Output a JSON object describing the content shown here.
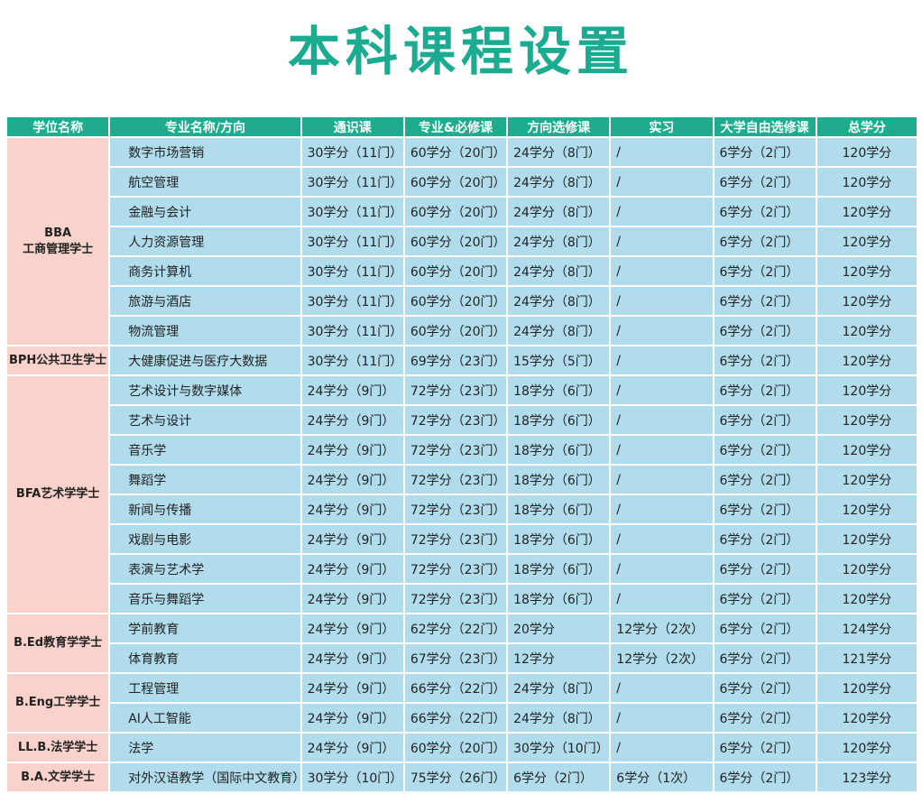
{
  "title": "本科课程设置",
  "headers": [
    "学位名称",
    "专业名称/方向",
    "通识课",
    "专业&必修课",
    "方向选修课",
    "实习",
    "大学自由选修课",
    "总学分"
  ],
  "groups": [
    {
      "degree": [
        "BBA",
        "工商管理学士"
      ],
      "rows": [
        [
          "数字市场营销",
          "30学分（11门）",
          "60学分（20门）",
          "24学分（8门）",
          "/",
          "6学分（2门）",
          "120学分"
        ],
        [
          "航空管理",
          "30学分（11门）",
          "60学分（20门）",
          "24学分（8门）",
          "/",
          "6学分（2门）",
          "120学分"
        ],
        [
          "金融与会计",
          "30学分（11门）",
          "60学分（20门）",
          "24学分（8门）",
          "/",
          "6学分（2门）",
          "120学分"
        ],
        [
          "人力资源管理",
          "30学分（11门）",
          "60学分（20门）",
          "24学分（8门）",
          "/",
          "6学分（2门）",
          "120学分"
        ],
        [
          "商务计算机",
          "30学分（11门）",
          "60学分（20门）",
          "24学分（8门）",
          "/",
          "6学分（2门）",
          "120学分"
        ],
        [
          "旅游与酒店",
          "30学分（11门）",
          "60学分（20门）",
          "24学分（8门）",
          "/",
          "6学分（2门）",
          "120学分"
        ],
        [
          "物流管理",
          "30学分（11门）",
          "60学分（20门）",
          "24学分（8门）",
          "/",
          "6学分（2门）",
          "120学分"
        ]
      ]
    },
    {
      "degree": [
        "BPH公共卫生学士"
      ],
      "rows": [
        [
          "大健康促进与医疗大数据",
          "30学分（11门）",
          "69学分（23门）",
          "15学分（5门）",
          "/",
          "6学分（2门）",
          "120学分"
        ]
      ]
    },
    {
      "degree": [
        "BFA艺术学学士"
      ],
      "rows": [
        [
          "艺术设计与数字媒体",
          "24学分（9门）",
          "72学分（23门）",
          "18学分（6门）",
          "/",
          "6学分（2门）",
          "120学分"
        ],
        [
          "艺术与设计",
          "24学分（9门）",
          "72学分（23门）",
          "18学分（6门）",
          "/",
          "6学分（2门）",
          "120学分"
        ],
        [
          "音乐学",
          "24学分（9门）",
          "72学分（23门）",
          "18学分（6门）",
          "/",
          "6学分（2门）",
          "120学分"
        ],
        [
          "舞蹈学",
          "24学分（9门）",
          "72学分（23门）",
          "18学分（6门）",
          "/",
          "6学分（2门）",
          "120学分"
        ],
        [
          "新闻与传播",
          "24学分（9门）",
          "72学分（23门）",
          "18学分（6门）",
          "/",
          "6学分（2门）",
          "120学分"
        ],
        [
          "戏剧与电影",
          "24学分（9门）",
          "72学分（23门）",
          "18学分（6门）",
          "/",
          "6学分（2门）",
          "120学分"
        ],
        [
          "表演与艺术学",
          "24学分（9门）",
          "72学分（23门）",
          "18学分（6门）",
          "/",
          "6学分（2门）",
          "120学分"
        ],
        [
          "音乐与舞蹈学",
          "24学分（9门）",
          "72学分（23门）",
          "18学分（6门）",
          "/",
          "6学分（2门）",
          "120学分"
        ]
      ]
    },
    {
      "degree": [
        "B.Ed教育学学士"
      ],
      "rows": [
        [
          "学前教育",
          "24学分（9门）",
          "62学分（22门）",
          "20学分",
          "12学分（2次）",
          "6学分（2门）",
          "124学分"
        ],
        [
          "体育教育",
          "24学分（9门）",
          "67学分（23门）",
          "12学分",
          "12学分（2次）",
          "6学分（2门）",
          "121学分"
        ]
      ]
    },
    {
      "degree": [
        "B.Eng工学学士"
      ],
      "rows": [
        [
          "工程管理",
          "24学分（9门）",
          "66学分（22门）",
          "24学分（8门）",
          "/",
          "6学分（2门）",
          "120学分"
        ],
        [
          "AI人工智能",
          "24学分（9门）",
          "66学分（22门）",
          "24学分（8门）",
          "/",
          "6学分（2门）",
          "120学分"
        ]
      ]
    },
    {
      "degree": [
        "LL.B.法学学士"
      ],
      "rows": [
        [
          "法学",
          "24学分（9门）",
          "60学分（20门）",
          "30学分（10门）",
          "/",
          "6学分（2门）",
          "120学分"
        ]
      ]
    },
    {
      "degree": [
        "B.A.文学学士"
      ],
      "rows": [
        [
          "对外汉语教学（国际中文教育）",
          "30学分（10门）",
          "75学分（26门）",
          "6学分（2门）",
          "6学分（1次）",
          "6学分（2门）",
          "123学分"
        ]
      ]
    }
  ]
}
